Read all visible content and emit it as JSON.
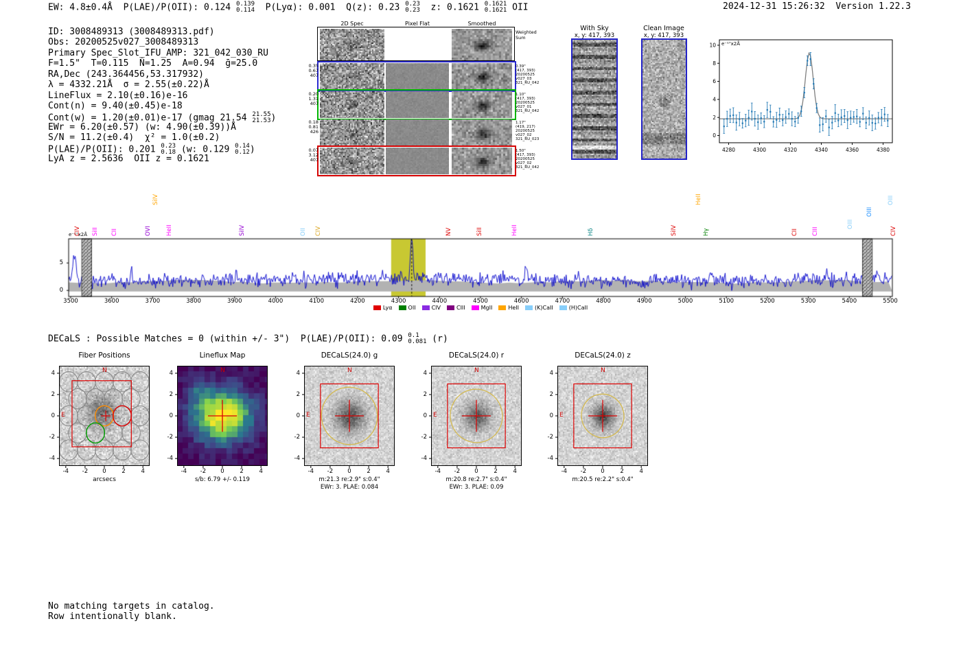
{
  "header": {
    "left_segments": [
      "EW: 4.8±0.4Å  P(LAE)/P(OII): 0.124 ",
      {
        "hi": "0.139",
        "lo": "0.114"
      },
      "  P(Lyα): 0.001  Q(z): 0.23 ",
      {
        "hi": "0.23",
        "lo": "0.23"
      },
      "  z: 0.1621 ",
      {
        "hi": "0.1621",
        "lo": "0.1621"
      },
      " OII"
    ],
    "right": "2024-12-31 15:26:32  Version 1.22.3"
  },
  "info": {
    "lines": [
      "ID: 3008489313 (3008489313.pdf)",
      "Obs: 20200525v027_3008489313",
      "Primary Spec_Slot_IFU_AMP: 321_042_030_RU",
      "F=1.5\"  T=0.115  N̄=1.25  A=0.94  ḡ=25.0",
      "RA,Dec (243.364456,53.317932)",
      "λ = 4332.21Å  σ = 2.55(±0.22)Å",
      "LineFlux = 2.10(±0.16)e-16",
      "Cont(n) = 9.40(±0.45)e-18",
      [
        "Cont(w) = 1.20(±0.01)e-17 (gmag 21.54 ",
        {
          "hi": "21.55",
          "lo": "21.53"
        },
        ")"
      ],
      "EWr = 6.20(±0.57) (w: 4.90(±0.39))Å",
      "S/N = 11.2(±0.4)  χ² = 1.0(±0.2)",
      [
        "P(LAE)/P(OII): 0.201 ",
        {
          "hi": "0.23",
          "lo": "0.18"
        },
        " (w: 0.129 ",
        {
          "hi": "0.14",
          "lo": "0.12"
        },
        ")"
      ],
      "LyA z = 2.5636  OII z = 0.1621"
    ]
  },
  "spec2d": {
    "col_headers": [
      "2D Spec",
      "Pixel Flat",
      "Smoothed"
    ],
    "rows": [
      {
        "border": "#000000",
        "weighted": true,
        "left": [],
        "right": [
          "Weighted",
          "Sum"
        ]
      },
      {
        "border": "#2a2ad0",
        "left": [
          "0.35",
          "0.67",
          "407"
        ],
        "right": [
          "0.39\"",
          "(417, 393)",
          "20200525",
          "v027_03",
          "321_RU_042"
        ]
      },
      {
        "border": "#00b400",
        "left": [
          "0.20",
          "1.31",
          "407"
        ],
        "right": [
          "1.10\"",
          "(417, 393)",
          "20200525",
          "v027_01",
          "321_RU_042"
        ]
      },
      {
        "border": "none",
        "left": [
          "0.18",
          "0.81",
          "426"
        ],
        "right": [
          "1.17\"",
          "(419, 217)",
          "20200525",
          "v027_02",
          "321_RU_023"
        ]
      },
      {
        "border": "#d40000",
        "left": [
          "0.07",
          "3.12",
          "407"
        ],
        "right": [
          "1.50\"",
          "(417, 393)",
          "20200525",
          "v027_02",
          "321_RU_042"
        ]
      }
    ]
  },
  "sky_panel": {
    "title": "With Sky",
    "subtitle": "x, y: 417, 393"
  },
  "clean_panel": {
    "title": "Clean Image",
    "subtitle": "x, y: 417, 393"
  },
  "chart_data": [
    {
      "id": "line_fit_inset",
      "type": "scatter",
      "ylabel": "e⁻¹⁷x2Å",
      "xlim": [
        4274,
        4386
      ],
      "ylim": [
        -0.8,
        10.6
      ],
      "xticks": [
        4280,
        4300,
        4320,
        4340,
        4360,
        4380
      ],
      "yticks": [
        0,
        2,
        4,
        6,
        8,
        10
      ],
      "series": [
        {
          "name": "observed",
          "style": "errorbar",
          "color": "#1f77b4"
        },
        {
          "name": "gaussian_fit",
          "style": "line",
          "color": "#7f7f7f"
        }
      ],
      "fit": {
        "center": 4332.21,
        "sigma": 2.55,
        "amplitude": 7.3,
        "baseline": 1.85
      }
    },
    {
      "id": "full_spectrum",
      "type": "line",
      "ylabel": "e⁻¹⁷x2Å",
      "xlim": [
        3495,
        5505
      ],
      "ylim": [
        -1.1,
        9.4
      ],
      "xticks": [
        3500,
        3600,
        3700,
        3800,
        3900,
        4000,
        4100,
        4200,
        4300,
        4400,
        4500,
        4600,
        4700,
        4800,
        4900,
        5000,
        5100,
        5200,
        5300,
        5400,
        5500
      ],
      "yticks": [
        0,
        5
      ],
      "series": [
        {
          "name": "spectrum",
          "style": "line",
          "color": "#0000cc"
        }
      ],
      "continuum_band_top": 1.6,
      "peak": {
        "center": 4332.21,
        "sigma": 2.55,
        "amplitude": 7.3
      },
      "highlight_band": {
        "x0": 4282,
        "x1": 4366,
        "color": "#c8c832"
      },
      "hatch_bands": [
        [
          3527,
          3551
        ],
        [
          5432,
          5456
        ]
      ],
      "legend": [
        {
          "label": "Lyα",
          "color": "#e00000"
        },
        {
          "label": "OII",
          "color": "#008000"
        },
        {
          "label": "CIV",
          "color": "#8a2be2"
        },
        {
          "label": "CIII",
          "color": "#800080"
        },
        {
          "label": "MgII",
          "color": "#ff00ff"
        },
        {
          "label": "HeII",
          "color": "#ffa500"
        },
        {
          "label": "(K)CaII",
          "color": "#87cefa"
        },
        {
          "label": "(H)CaII",
          "color": "#87cefa"
        }
      ],
      "line_labels": [
        {
          "label": "CIV",
          "wave": 3512,
          "color": "#dd0000",
          "raise": 0
        },
        {
          "label": "SiII",
          "wave": 3556,
          "color": "#ff00ff",
          "raise": 0
        },
        {
          "label": "CII",
          "wave": 3602,
          "color": "#ff00ff",
          "raise": 0
        },
        {
          "label": "OVI",
          "wave": 3684,
          "color": "#9400d3",
          "raise": 0
        },
        {
          "label": "SiIV",
          "wave": 3702,
          "color": "#ffa500",
          "raise": 45
        },
        {
          "label": "HeII",
          "wave": 3736,
          "color": "#ff00ff",
          "raise": 0
        },
        {
          "label": "SiIV",
          "wave": 3914,
          "color": "#9400d3",
          "raise": 0
        },
        {
          "label": "OII",
          "wave": 4062,
          "color": "#87cefa",
          "raise": 0
        },
        {
          "label": "CIV",
          "wave": 4100,
          "color": "#daa520",
          "raise": 0
        },
        {
          "label": "NV",
          "wave": 4418,
          "color": "#dd0000",
          "raise": 0
        },
        {
          "label": "SiII",
          "wave": 4494,
          "color": "#dd0000",
          "raise": 0
        },
        {
          "label": "HeII",
          "wave": 4578,
          "color": "#ff00ff",
          "raise": 0
        },
        {
          "label": "Hδ",
          "wave": 4764,
          "color": "#008080",
          "raise": 0
        },
        {
          "label": "SiIV",
          "wave": 4968,
          "color": "#dd0000",
          "raise": 0
        },
        {
          "label": "HeII",
          "wave": 5028,
          "color": "#ffa500",
          "raise": 45
        },
        {
          "label": "Hγ",
          "wave": 5046,
          "color": "#008000",
          "raise": 0
        },
        {
          "label": "CII",
          "wave": 5262,
          "color": "#dd0000",
          "raise": 0
        },
        {
          "label": "CIII",
          "wave": 5312,
          "color": "#ff00ff",
          "raise": 0
        },
        {
          "label": "OIII",
          "wave": 5398,
          "color": "#87cefa",
          "raise": 10
        },
        {
          "label": "OIII",
          "wave": 5444,
          "color": "#1e90ff",
          "raise": 28
        },
        {
          "label": "OIII",
          "wave": 5496,
          "color": "#87cefa",
          "raise": 45
        },
        {
          "label": "CIV",
          "wave": 5504,
          "color": "#dd0000",
          "raise": 0
        }
      ]
    }
  ],
  "matches": {
    "segments": [
      "DECaLS : Possible Matches = 0 (within +/- 3\")  P(LAE)/P(OII): 0.09 ",
      {
        "hi": "0.1",
        "lo": "0.081"
      },
      " (r)"
    ]
  },
  "cutouts": {
    "axis_ticks": [
      -4,
      -2,
      0,
      2,
      4
    ],
    "panels": [
      {
        "title": "Fiber Positions",
        "type": "fibers",
        "xlabel": "arcsecs",
        "captions": [],
        "compass": [
          "N",
          "E"
        ]
      },
      {
        "title": "Lineflux Map",
        "type": "heatmap",
        "captions": [
          "s/b: 6.79 +/- 0.119"
        ],
        "compass": [
          "N"
        ]
      },
      {
        "title": "DECaLS(24.0) g",
        "type": "image",
        "captions": [
          "m:21.3 re:2.9\" s:0.4\"",
          "EWr: 3. PLAE: 0.084"
        ],
        "re_arcsec": 2.9,
        "compass": [
          "N",
          "E"
        ]
      },
      {
        "title": "DECaLS(24.0) r",
        "type": "image",
        "captions": [
          "m:20.8 re:2.7\" s:0.4\"",
          "EWr: 3. PLAE: 0.09"
        ],
        "re_arcsec": 2.7,
        "compass": [
          "N",
          "E"
        ]
      },
      {
        "title": "DECaLS(24.0) z",
        "type": "image",
        "captions": [
          "m:20.5 re:2.2\" s:0.4\""
        ],
        "re_arcsec": 2.2,
        "compass": [
          "N",
          "E"
        ]
      }
    ]
  },
  "footer": {
    "lines": [
      "No matching targets in catalog.",
      "Row intentionally blank."
    ]
  }
}
